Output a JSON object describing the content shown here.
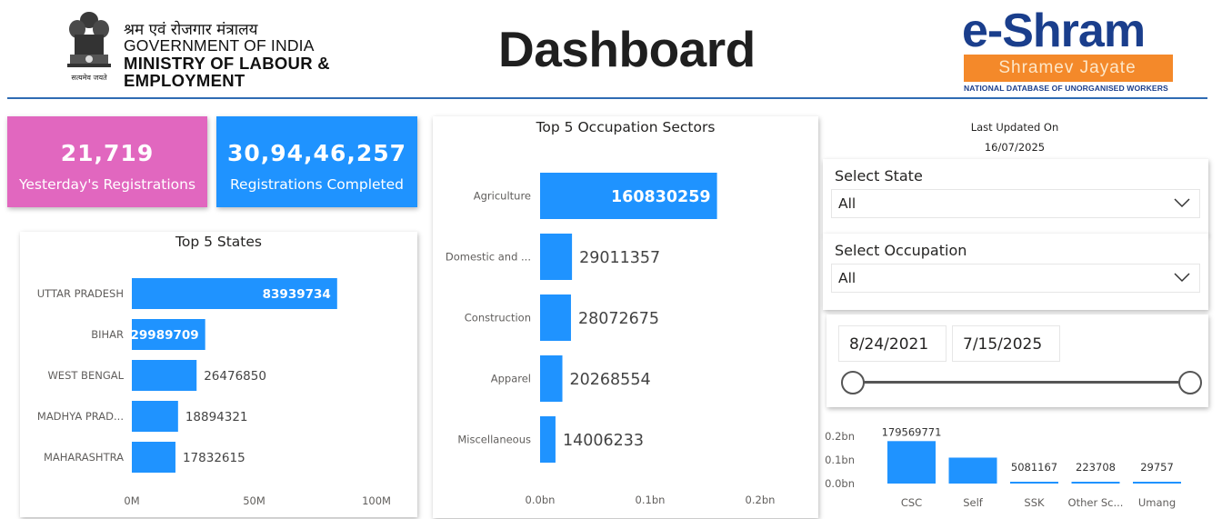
{
  "header": {
    "hindi_title": "श्रम एवं रोजगार मंत्रालय",
    "gov_label": "GOVERNMENT OF INDIA",
    "ministry_line1": "MINISTRY OF LABOUR &",
    "ministry_line2": "EMPLOYMENT",
    "emblem_caption": "सत्यमेव जयते",
    "dashboard_title": "Dashboard",
    "logo": {
      "wordmark": "e-Shram",
      "tagline": "Shramev Jayate",
      "subtitle": "NATIONAL DATABASE OF UNORGANISED WORKERS"
    },
    "colors": {
      "rule": "#2f6bb3",
      "logo_blue": "#1a3e8c",
      "logo_orange": "#f4892a"
    }
  },
  "kpis": {
    "yesterday": {
      "value": "21,719",
      "label": "Yesterday's Registrations",
      "color": "#e167bf"
    },
    "completed": {
      "value": "30,94,46,257",
      "label": "Registrations Completed",
      "color": "#1f93ff"
    }
  },
  "last_updated": {
    "label": "Last Updated On",
    "date": "16/07/2025"
  },
  "filters": {
    "state": {
      "title": "Select State",
      "value": "All"
    },
    "occupation": {
      "title": "Select Occupation",
      "value": "All"
    },
    "date_range": {
      "start": "8/24/2021",
      "end": "7/15/2025"
    }
  },
  "chart_data": [
    {
      "type": "bar",
      "orientation": "horizontal",
      "title": "Top 5 States",
      "categories": [
        "UTTAR PRADESH",
        "BIHAR",
        "WEST BENGAL",
        "MADHYA PRAD...",
        "MAHARASHTRA"
      ],
      "values": [
        83939734,
        29989709,
        26476850,
        18894321,
        17832615
      ],
      "x_ticks": [
        "0M",
        "50M",
        "100M"
      ],
      "xlim": [
        0,
        100000000
      ],
      "color": "#1f93ff"
    },
    {
      "type": "bar",
      "orientation": "horizontal",
      "title": "Top 5 Occupation Sectors",
      "categories": [
        "Agriculture",
        "Domestic and ...",
        "Construction",
        "Apparel",
        "Miscellaneous"
      ],
      "values": [
        160830259,
        29011357,
        28072675,
        20268554,
        14006233
      ],
      "x_ticks": [
        "0.0bn",
        "0.1bn",
        "0.2bn"
      ],
      "xlim": [
        0,
        200000000
      ],
      "color": "#1f93ff"
    },
    {
      "type": "bar",
      "orientation": "vertical",
      "categories": [
        "CSC",
        "Self",
        "SSK",
        "Other Sc...",
        "Umang"
      ],
      "values": [
        179569771,
        109700000,
        5081167,
        223708,
        29757
      ],
      "value_labels": [
        "179569771",
        "",
        "5081167",
        "223708",
        "29757"
      ],
      "y_ticks": [
        "0.2bn",
        "0.1bn",
        "0.0bn"
      ],
      "ylim": [
        0,
        200000000
      ],
      "color": "#1f93ff"
    }
  ]
}
